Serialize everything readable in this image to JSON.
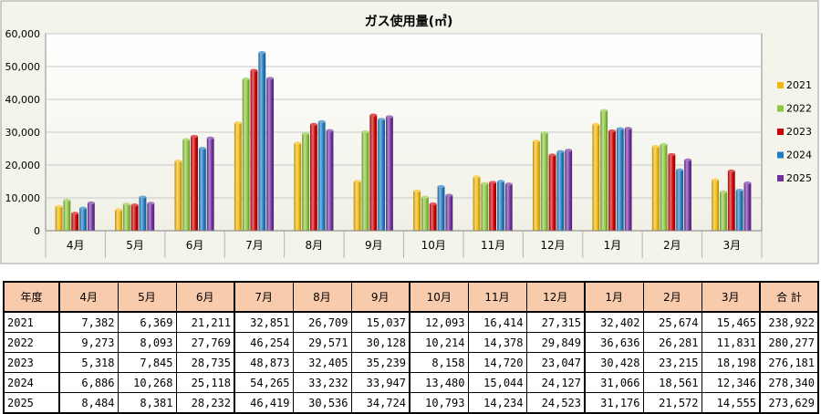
{
  "chart_data": {
    "type": "bar",
    "title": "ガス使用量(㎥)",
    "categories": [
      "4月",
      "5月",
      "6月",
      "7月",
      "8月",
      "9月",
      "10月",
      "11月",
      "12月",
      "1月",
      "2月",
      "3月"
    ],
    "ylim": [
      0,
      60000
    ],
    "yticks": [
      "0",
      "10,000",
      "20,000",
      "30,000",
      "40,000",
      "50,000",
      "60,000"
    ],
    "grid": true,
    "legend_position": "right",
    "series": [
      {
        "name": "2021",
        "color": "#f2b90c",
        "values": [
          7382,
          6369,
          21211,
          32851,
          26709,
          15037,
          12093,
          16414,
          27315,
          32402,
          25674,
          15465
        ]
      },
      {
        "name": "2022",
        "color": "#8dc63f",
        "values": [
          9273,
          8093,
          27769,
          46254,
          29571,
          30128,
          10214,
          14378,
          29849,
          36636,
          26281,
          11831
        ]
      },
      {
        "name": "2023",
        "color": "#cc0000",
        "values": [
          5318,
          7845,
          28735,
          48873,
          32405,
          35239,
          8158,
          14720,
          23047,
          30428,
          23215,
          18198
        ]
      },
      {
        "name": "2024",
        "color": "#1f7bc2",
        "values": [
          6886,
          10268,
          25118,
          54265,
          33232,
          33947,
          13480,
          15044,
          24127,
          31066,
          18561,
          12346
        ]
      },
      {
        "name": "2025",
        "color": "#7030a0",
        "values": [
          8484,
          8381,
          28232,
          46419,
          30536,
          34724,
          10793,
          14234,
          24523,
          31176,
          21572,
          14555
        ]
      }
    ]
  },
  "table": {
    "headers": [
      "年度",
      "4月",
      "5月",
      "6月",
      "7月",
      "8月",
      "9月",
      "10月",
      "11月",
      "12月",
      "1月",
      "2月",
      "3月",
      "合 計"
    ],
    "rows": [
      {
        "year": "2021",
        "values": [
          "7,382",
          "6,369",
          "21,211",
          "32,851",
          "26,709",
          "15,037",
          "12,093",
          "16,414",
          "27,315",
          "32,402",
          "25,674",
          "15,465"
        ],
        "total": "238,922"
      },
      {
        "year": "2022",
        "values": [
          "9,273",
          "8,093",
          "27,769",
          "46,254",
          "29,571",
          "30,128",
          "10,214",
          "14,378",
          "29,849",
          "36,636",
          "26,281",
          "11,831"
        ],
        "total": "280,277"
      },
      {
        "year": "2023",
        "values": [
          "5,318",
          "7,845",
          "28,735",
          "48,873",
          "32,405",
          "35,239",
          "8,158",
          "14,720",
          "23,047",
          "30,428",
          "23,215",
          "18,198"
        ],
        "total": "276,181"
      },
      {
        "year": "2024",
        "values": [
          "6,886",
          "10,268",
          "25,118",
          "54,265",
          "33,232",
          "33,947",
          "13,480",
          "15,044",
          "24,127",
          "31,066",
          "18,561",
          "12,346"
        ],
        "total": "278,340"
      },
      {
        "year": "2025",
        "values": [
          "8,484",
          "8,381",
          "28,232",
          "46,419",
          "30,536",
          "34,724",
          "10,793",
          "14,234",
          "24,523",
          "31,176",
          "21,572",
          "14,555"
        ],
        "total": "273,629"
      }
    ]
  }
}
